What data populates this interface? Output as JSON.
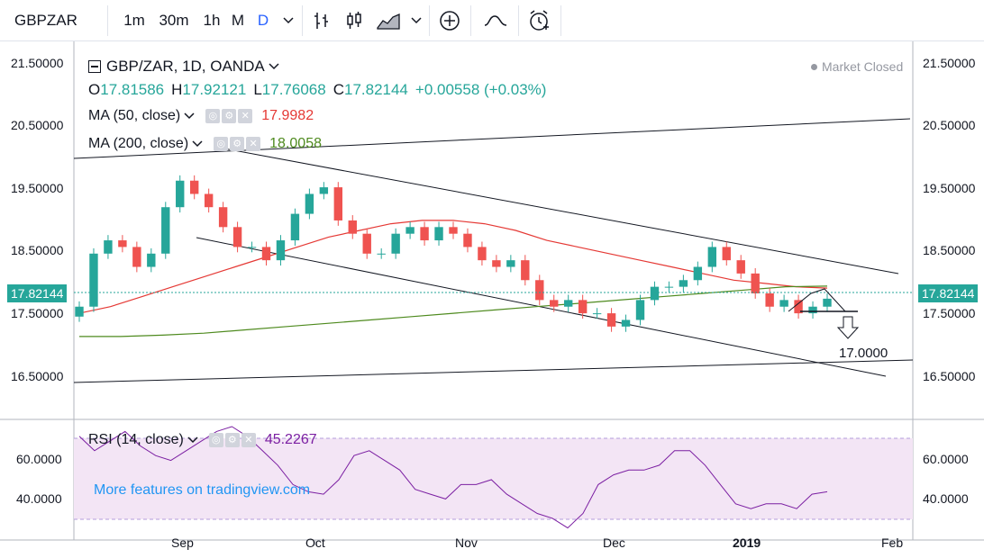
{
  "toolbar": {
    "symbol": "GBPZAR",
    "intervals": [
      "1m",
      "30m",
      "1h",
      "M",
      "D"
    ],
    "active_interval": "D"
  },
  "legend": {
    "title": "GBP/ZAR, 1D, OANDA",
    "market_status": "Market Closed",
    "ohlc": {
      "o_label": "O",
      "o": "17.81586",
      "h_label": "H",
      "h": "17.92121",
      "l_label": "L",
      "l": "17.76068",
      "c_label": "C",
      "c": "17.82144",
      "change": "+0.00558 (+0.03%)"
    },
    "ma50": {
      "label": "MA (50, close)",
      "value": "17.9982",
      "color": "#e53935"
    },
    "ma200": {
      "label": "MA (200, close)",
      "value": "18.0058",
      "color": "#4e8a1e"
    }
  },
  "rsi": {
    "label": "RSI (14, close)",
    "value": "45.2267",
    "color": "#7b1fa2"
  },
  "watermark": "More features on tradingview.com",
  "annotation": "17.0000",
  "colors": {
    "up": "#26a69a",
    "down": "#ef5350",
    "rsi_band": "#f3e5f5"
  },
  "chart_data": {
    "type": "candlestick",
    "symbol": "GBP/ZAR",
    "interval": "1D",
    "last_price": "17.82144",
    "price_axis": [
      "21.50000",
      "20.50000",
      "19.50000",
      "18.50000",
      "17.50000",
      "16.50000"
    ],
    "rsi_axis": [
      "60.0000",
      "40.0000"
    ],
    "x_labels": [
      "Sep",
      "Oct",
      "Nov",
      "Dec",
      "2019",
      "Feb"
    ],
    "ylim": [
      16.0,
      21.7
    ],
    "rsi_ylim": [
      25,
      75
    ],
    "close_series": [
      17.7,
      18.5,
      18.7,
      18.6,
      18.3,
      18.5,
      19.2,
      19.6,
      19.4,
      19.2,
      18.9,
      18.6,
      18.6,
      18.4,
      18.7,
      19.1,
      19.4,
      19.5,
      19.0,
      18.8,
      18.5,
      18.5,
      18.8,
      18.9,
      18.7,
      18.9,
      18.8,
      18.6,
      18.4,
      18.3,
      18.4,
      18.1,
      17.8,
      17.7,
      17.8,
      17.6,
      17.6,
      17.4,
      17.5,
      17.8,
      18.0,
      18.0,
      18.1,
      18.3,
      18.6,
      18.4,
      18.2,
      17.9,
      17.7,
      17.8,
      17.6,
      17.7,
      17.82
    ],
    "ma50_series": [
      17.6,
      17.7,
      17.85,
      18.0,
      18.15,
      18.3,
      18.45,
      18.6,
      18.75,
      18.85,
      18.95,
      19.0,
      19.0,
      18.95,
      18.85,
      18.7,
      18.6,
      18.5,
      18.4,
      18.3,
      18.2,
      18.1,
      18.05,
      18.0,
      17.98
    ],
    "ma200_series": [
      17.25,
      17.25,
      17.27,
      17.3,
      17.35,
      17.4,
      17.45,
      17.5,
      17.55,
      17.6,
      17.65,
      17.7,
      17.75,
      17.8,
      17.85,
      17.9,
      17.95,
      18.0,
      18.01
    ],
    "rsi_series": [
      68,
      62,
      66,
      70,
      64,
      60,
      58,
      62,
      66,
      70,
      72,
      68,
      62,
      56,
      48,
      45,
      44,
      50,
      60,
      62,
      58,
      54,
      46,
      44,
      42,
      48,
      48,
      50,
      44,
      40,
      36,
      34,
      30,
      36,
      48,
      52,
      54,
      54,
      56,
      62,
      62,
      56,
      48,
      40,
      38,
      40,
      40,
      38,
      44,
      45
    ]
  }
}
